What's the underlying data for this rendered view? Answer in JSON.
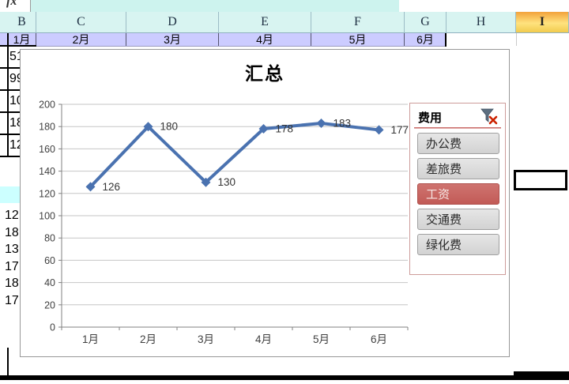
{
  "name_box": {
    "fx_glyph": "fx"
  },
  "columns": {
    "headers": [
      "B",
      "C",
      "D",
      "E",
      "F",
      "G",
      "H",
      "I"
    ],
    "selected_header": "I"
  },
  "month_row": {
    "cells": [
      "1月",
      "2月",
      "3月",
      "4月",
      "5月",
      "6月"
    ]
  },
  "left_column": {
    "upper_values": [
      "51",
      "99",
      "10",
      "18",
      "12"
    ],
    "lower_values": [
      "12",
      "18",
      "13",
      "17",
      "18",
      "17"
    ]
  },
  "chart_data": {
    "type": "line",
    "title": "汇总",
    "categories": [
      "1月",
      "2月",
      "3月",
      "4月",
      "5月",
      "6月"
    ],
    "series": [
      {
        "name": "工资",
        "values": [
          126,
          180,
          130,
          178,
          183,
          177
        ]
      }
    ],
    "data_labels": [
      "126",
      "180",
      "130",
      "178",
      "183",
      "177"
    ],
    "xlabel": "",
    "ylabel": "",
    "ylim": [
      0,
      200
    ],
    "yticks": [
      0,
      20,
      40,
      60,
      80,
      100,
      120,
      140,
      160,
      180,
      200
    ],
    "grid": true,
    "legend_position": "none",
    "line_color": "#4A72B0",
    "marker": "diamond"
  },
  "slicer": {
    "title": "费用",
    "clear_filter_icon": "funnel-clear-filter",
    "items": [
      {
        "label": "办公费",
        "selected": false
      },
      {
        "label": "差旅费",
        "selected": false
      },
      {
        "label": "工资",
        "selected": true
      },
      {
        "label": "交通费",
        "selected": false
      },
      {
        "label": "绿化费",
        "selected": false
      }
    ]
  },
  "colors": {
    "line": "#4A72B0",
    "gridline": "#C6C6C6",
    "axis": "#808080",
    "header_bg": "#D8F4F1",
    "selected_column_bg": "#FFC85E",
    "month_row_bg": "#CCCCFF",
    "slicer_border": "#CD9C9A",
    "slicer_item_bg": "#D9D9D9",
    "slicer_selected_bg": "#C8615C",
    "selection_border": "#000000"
  }
}
